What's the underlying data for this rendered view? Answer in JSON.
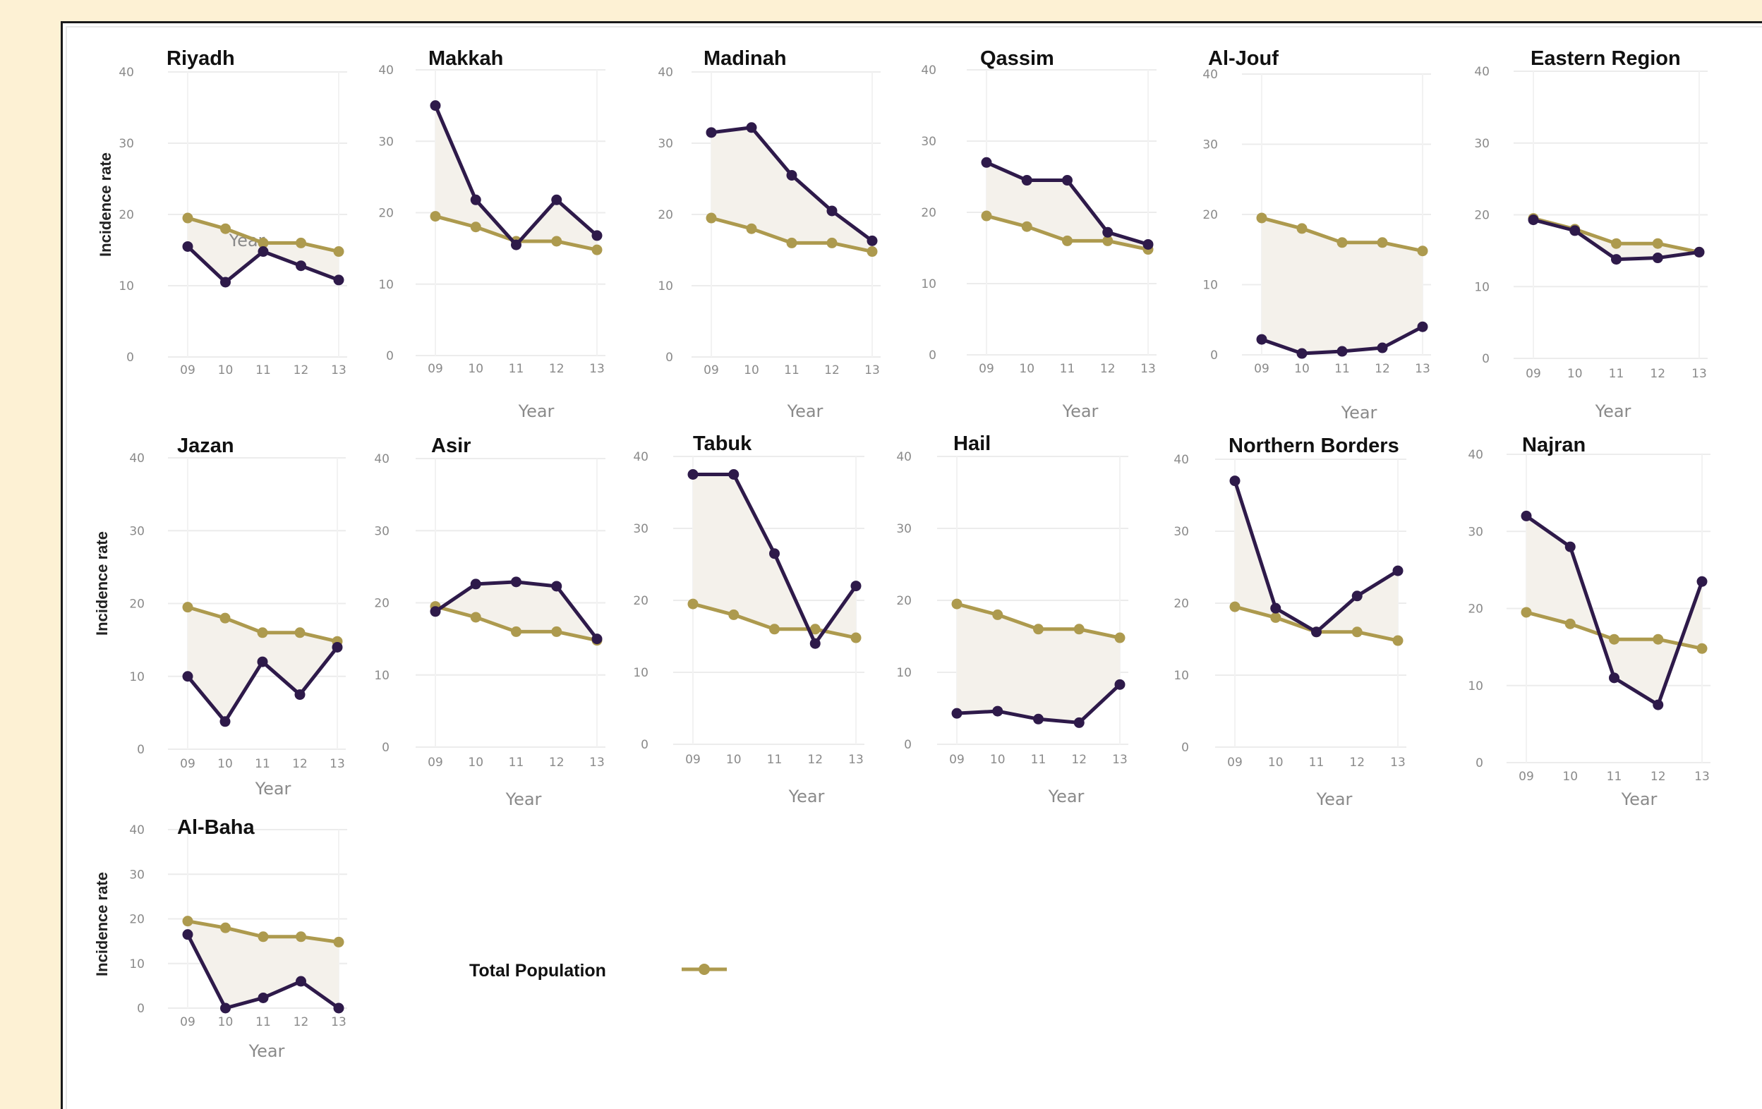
{
  "chart_data": {
    "type": "line",
    "x": [
      "09",
      "10",
      "11",
      "12",
      "13"
    ],
    "xlabel": "Year",
    "ylabel": "Incidence rate",
    "ylim": [
      0,
      40
    ],
    "yticks": [
      0,
      10,
      20,
      30,
      40
    ],
    "grid": true,
    "colors": {
      "region": "#2e1a4a",
      "total": "#ad9a4e",
      "fill": "#f4f1eb",
      "grid": "#ececec"
    },
    "legend": {
      "label": "Total Population",
      "position": "bottom-center"
    },
    "total_population": [
      19.5,
      18,
      16,
      16,
      14.8
    ],
    "panels": [
      {
        "title": "Riyadh",
        "region": [
          15.5,
          10.5,
          14.8,
          12.8,
          10.8
        ]
      },
      {
        "title": "Makkah",
        "region": [
          35,
          21.8,
          15.5,
          21.8,
          16.8
        ]
      },
      {
        "title": "Madinah",
        "region": [
          31.5,
          32.2,
          25.5,
          20.5,
          16.3
        ]
      },
      {
        "title": "Qassim",
        "region": [
          27,
          24.5,
          24.5,
          17.2,
          15.5
        ]
      },
      {
        "title": "Al-Jouf",
        "region": [
          2.2,
          0.2,
          0.5,
          1,
          4
        ]
      },
      {
        "title": "Eastern Region",
        "region": [
          19.3,
          17.8,
          13.8,
          14,
          14.8
        ]
      },
      {
        "title": "Jazan",
        "region": [
          10,
          3.8,
          12,
          7.5,
          14
        ]
      },
      {
        "title": "Asir",
        "region": [
          18.8,
          22.6,
          22.9,
          22.3,
          15
        ]
      },
      {
        "title": "Tabuk",
        "region": [
          37.5,
          37.5,
          26.5,
          14,
          22
        ]
      },
      {
        "title": "Hail",
        "region": [
          4.3,
          4.6,
          3.5,
          3,
          8.3
        ]
      },
      {
        "title": "Northern Borders",
        "region": [
          37,
          19.3,
          16,
          21,
          24.5
        ]
      },
      {
        "title": "Najran",
        "region": [
          32,
          28,
          11,
          7.5,
          23.5
        ]
      },
      {
        "title": "Al-Baha",
        "region": [
          16.5,
          0,
          2.3,
          6,
          0
        ]
      }
    ]
  }
}
